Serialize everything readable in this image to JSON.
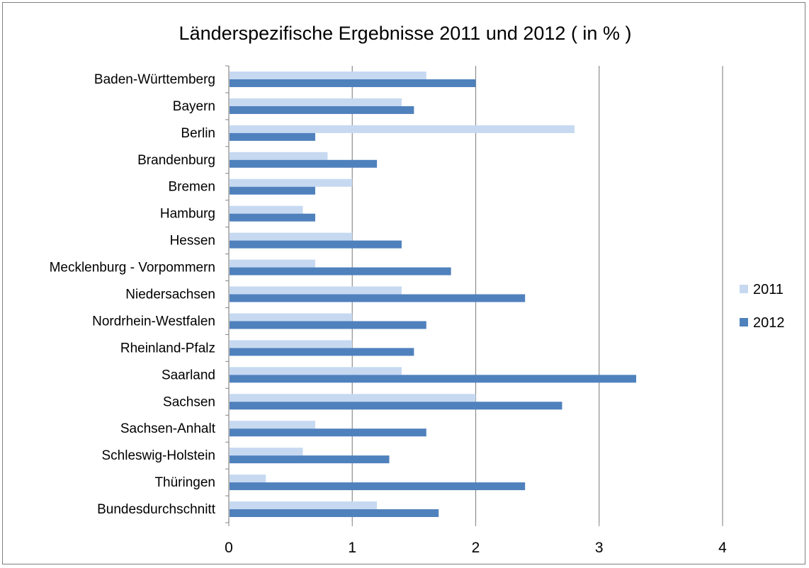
{
  "chart_data": {
    "type": "bar",
    "orientation": "horizontal",
    "title": "Länderspezifische Ergebnisse 2011 und 2012 ( in % )",
    "categories": [
      "Baden-Württemberg",
      "Bayern",
      "Berlin",
      "Brandenburg",
      "Bremen",
      "Hamburg",
      "Hessen",
      "Mecklenburg - Vorpommern",
      "Niedersachsen",
      "Nordrhein-Westfalen",
      "Rheinland-Pfalz",
      "Saarland",
      "Sachsen",
      "Sachsen-Anhalt",
      "Schleswig-Holstein",
      "Thüringen",
      "Bundesdurchschnitt"
    ],
    "series": [
      {
        "name": "2011",
        "color": "#c6d9f1",
        "values": [
          1.6,
          1.4,
          2.8,
          0.8,
          1.0,
          0.6,
          1.0,
          0.7,
          1.4,
          1.0,
          1.0,
          1.4,
          2.0,
          0.7,
          0.6,
          0.3,
          1.2
        ]
      },
      {
        "name": "2012",
        "color": "#4f81bd",
        "values": [
          2.0,
          1.5,
          0.7,
          1.2,
          0.7,
          0.7,
          1.4,
          1.8,
          2.4,
          1.6,
          1.5,
          3.3,
          2.7,
          1.6,
          1.3,
          2.4,
          1.7
        ]
      }
    ],
    "xlim": [
      0,
      4
    ],
    "xticks": [
      "0",
      "1",
      "2",
      "3",
      "4"
    ],
    "grid": "vertical",
    "legend": "right",
    "gridline_color": "#8c8c8c",
    "axis_color": "#868686"
  }
}
